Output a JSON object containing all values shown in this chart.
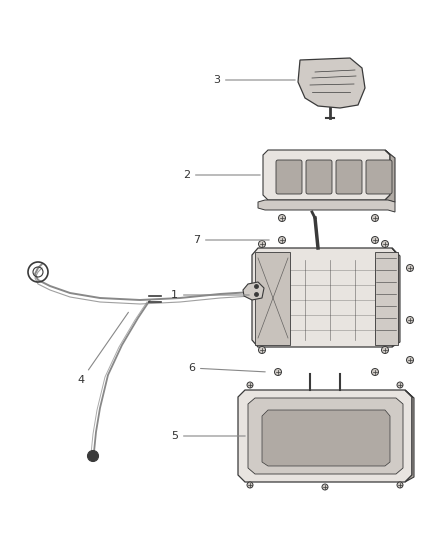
{
  "bg_color": "#ffffff",
  "line_color": "#555555",
  "label_color": "#333333",
  "dark": "#3a3a3a",
  "mid": "#888888",
  "light_fill": "#e8e4e0",
  "mid_fill": "#d0cbc6",
  "dark_fill": "#b0aaa4"
}
